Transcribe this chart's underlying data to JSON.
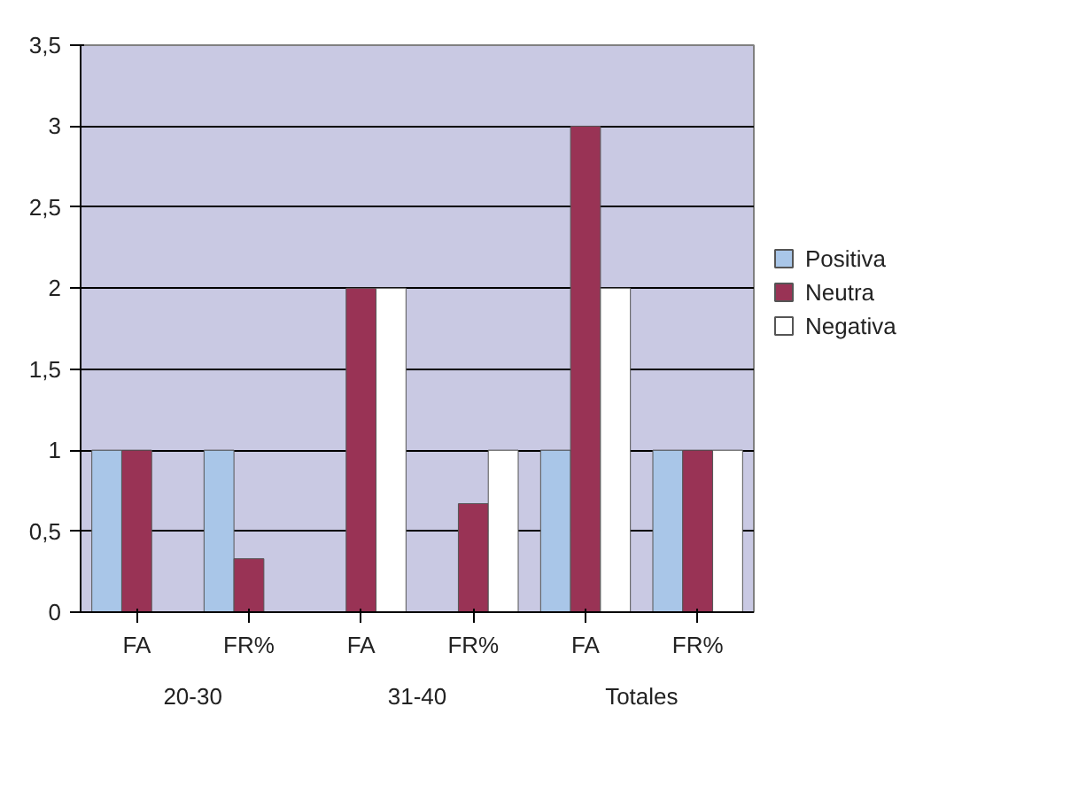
{
  "chart_data": {
    "type": "bar",
    "categories": [
      "FA",
      "FR%",
      "FA",
      "FR%",
      "FA",
      "FR%"
    ],
    "annotations": [
      "20-30",
      "31-40",
      "Totales"
    ],
    "series": [
      {
        "name": "Positiva",
        "color": "#a9c6e8",
        "values": [
          1,
          1,
          0,
          0,
          1,
          1
        ]
      },
      {
        "name": "Neutra",
        "color": "#993355",
        "values": [
          1,
          0.33,
          2,
          0.67,
          3,
          1
        ]
      },
      {
        "name": "Negativa",
        "color": "#ffffff",
        "values": [
          0,
          0,
          2,
          1,
          2,
          1
        ]
      }
    ],
    "ylim": [
      0,
      3.5
    ],
    "yticks": [
      0,
      {
        "value": 0.5,
        "label": "0,5"
      },
      1,
      {
        "value": 1.5,
        "label": "1,5"
      },
      2,
      {
        "value": 2.5,
        "label": "2,5"
      },
      3,
      {
        "value": 3.5,
        "label": "3,5"
      }
    ],
    "grid": "y",
    "legend": "right"
  }
}
